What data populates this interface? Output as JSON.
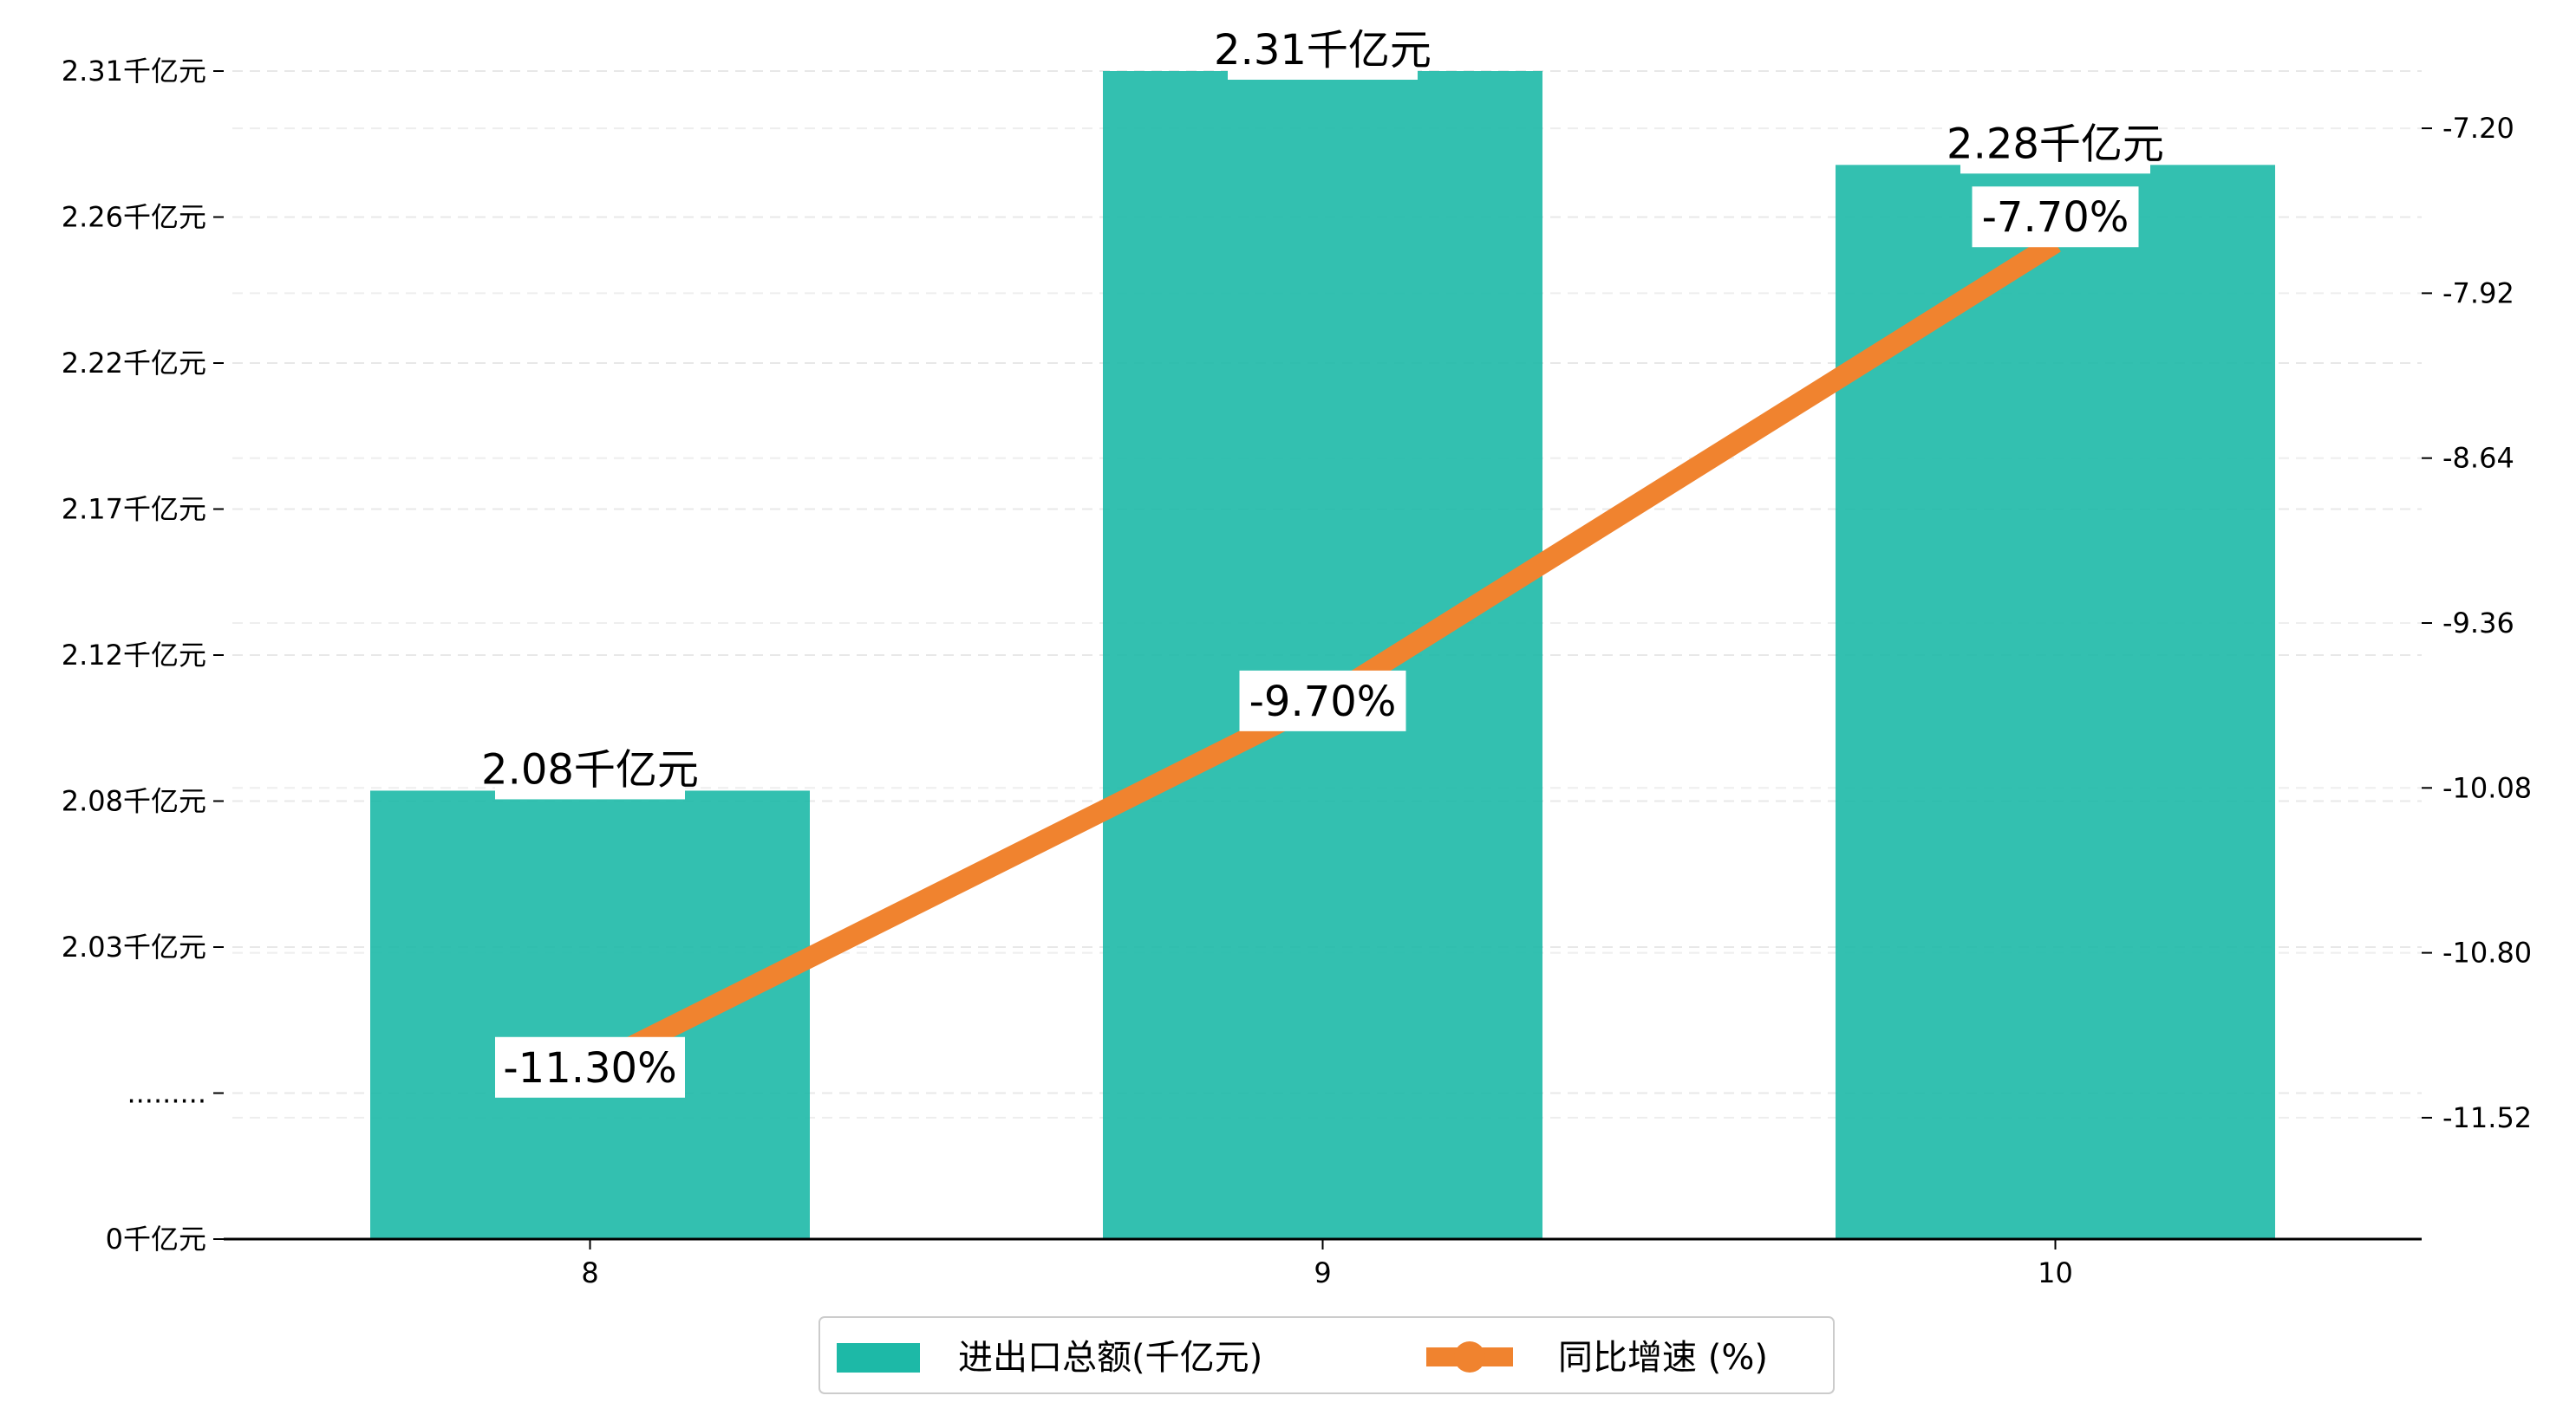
{
  "chart_data": {
    "type": "bar",
    "categories": [
      "8",
      "9",
      "10"
    ],
    "series": [
      {
        "name": "进出口总额(千亿元)",
        "type": "bar",
        "axis": "left",
        "values": [
          2.08,
          2.31,
          2.28
        ],
        "labels": [
          "2.08千亿元",
          "2.31千亿元",
          "2.28千亿元"
        ],
        "color": "#1db9a7"
      },
      {
        "name": "同比增速 (%)",
        "type": "line",
        "axis": "right",
        "values": [
          -11.3,
          -9.7,
          -7.7
        ],
        "labels": [
          "-11.30%",
          "-9.70%",
          "-7.70%"
        ],
        "color": "#f0832f"
      }
    ],
    "y_left": {
      "ticks": [
        {
          "label": "0千亿元",
          "pos": 0
        },
        {
          "label": ".........",
          "pos": 1
        },
        {
          "label": "2.03千亿元",
          "pos": 2
        },
        {
          "label": "2.08千亿元",
          "pos": 3
        },
        {
          "label": "2.12千亿元",
          "pos": 4
        },
        {
          "label": "2.17千亿元",
          "pos": 5
        },
        {
          "label": "2.22千亿元",
          "pos": 6
        },
        {
          "label": "2.26千亿元",
          "pos": 7
        },
        {
          "label": "2.31千亿元",
          "pos": 8
        }
      ],
      "break_note": "broken axis: 0 then 1.985 to 2.31"
    },
    "y_right": {
      "ticks": [
        "-7.20",
        "-7.92",
        "-8.64",
        "-9.36",
        "-10.08",
        "-10.80",
        "-11.52"
      ],
      "tick_values": [
        -7.2,
        -7.92,
        -8.64,
        -9.36,
        -10.08,
        -10.8,
        -11.52
      ],
      "ylim": [
        -12.05,
        -6.95
      ]
    },
    "grid": true,
    "legend_position": "bottom-center",
    "title": "",
    "xlabel": "",
    "ylabel": ""
  }
}
